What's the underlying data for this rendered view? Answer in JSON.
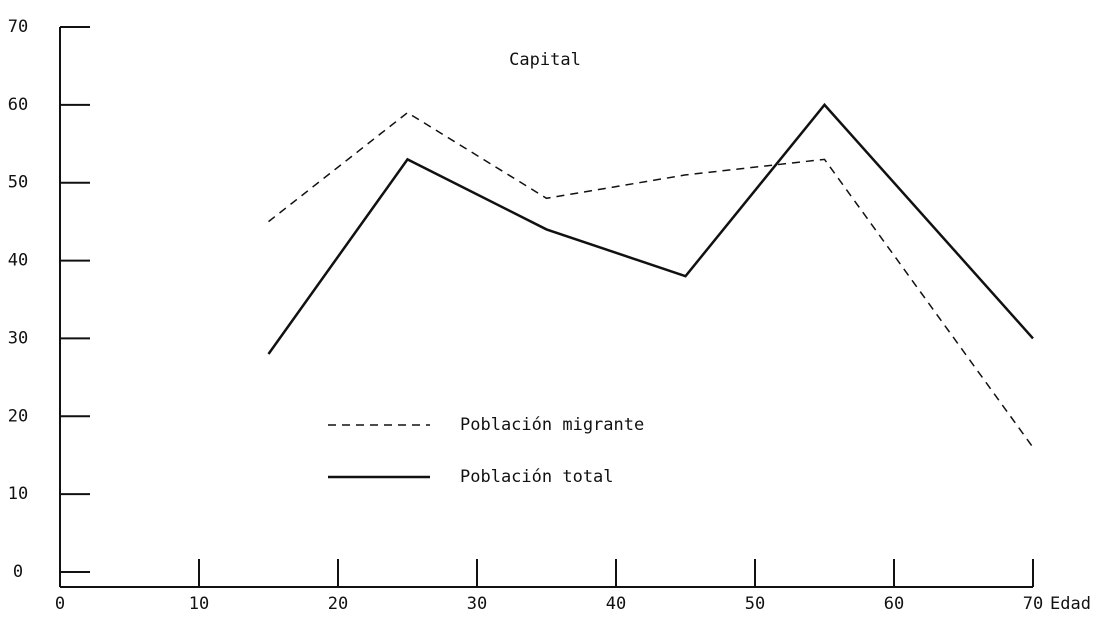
{
  "chart_data": {
    "type": "line",
    "title": "Capital",
    "x_label": "Edad",
    "x": [
      15,
      25,
      35,
      45,
      55,
      70
    ],
    "series": [
      {
        "name": "Población migrante",
        "color": "#111111",
        "dash": true,
        "values": [
          45,
          59,
          48,
          51,
          53,
          16
        ]
      },
      {
        "name": "Población total",
        "color": "#111111",
        "dash": false,
        "values": [
          28,
          53,
          44,
          38,
          60,
          30
        ]
      }
    ],
    "xlim": [
      0,
      70
    ],
    "xticks": [
      0,
      10,
      20,
      30,
      40,
      50,
      60,
      70
    ],
    "ylim": [
      0,
      70
    ],
    "yticks": [
      0,
      10,
      20,
      30,
      40,
      50,
      60,
      70
    ],
    "grid": false
  }
}
